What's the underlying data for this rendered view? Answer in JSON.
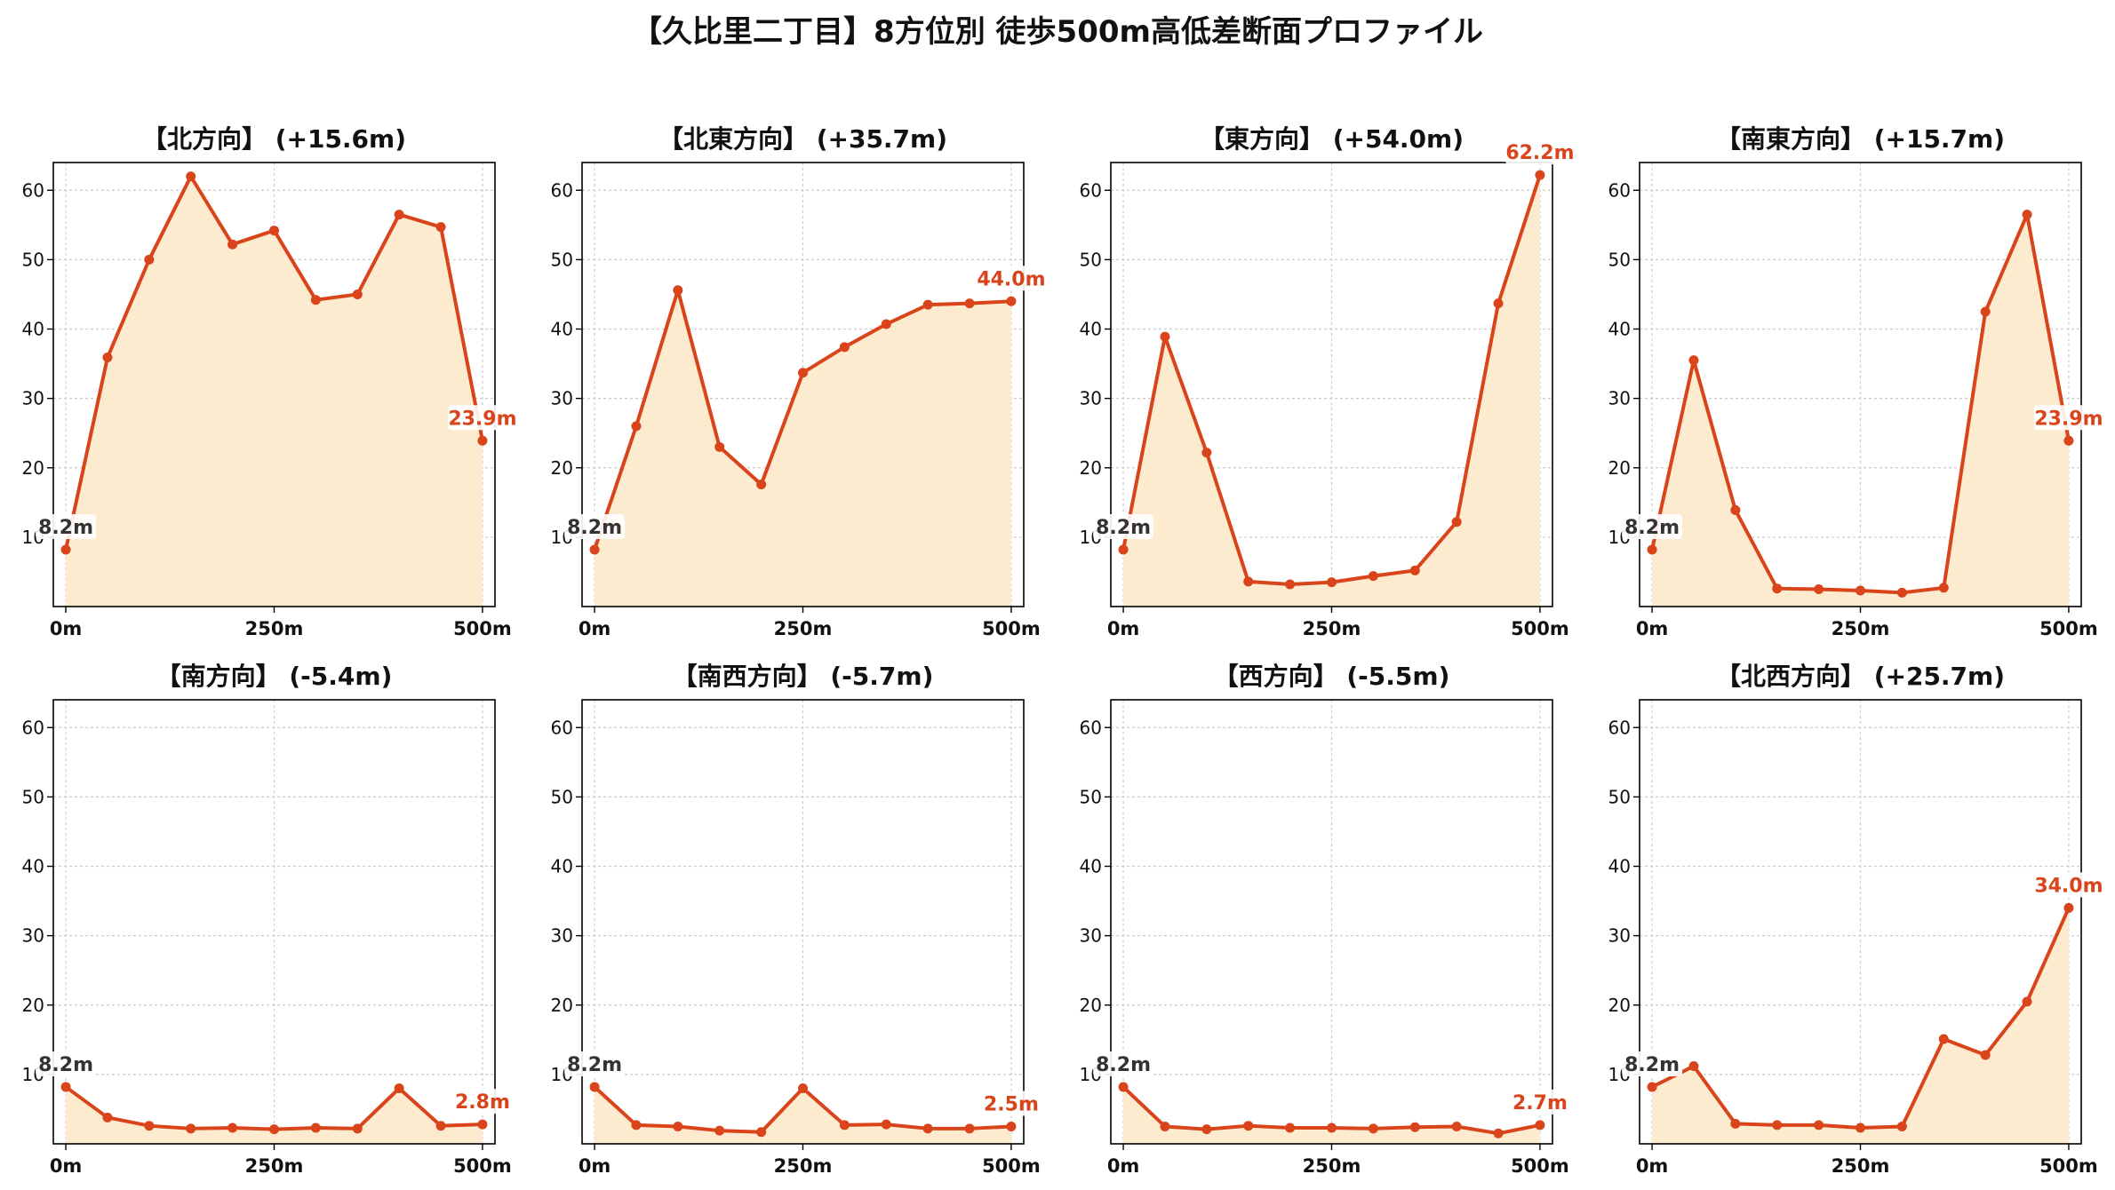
{
  "title": "【久比里二丁目】8方位別 徒歩500m高低差断面プロファイル",
  "colors": {
    "line": "#d9441a",
    "fill": "#fdebd0",
    "start_label": "#333333",
    "end_label": "#d9441a",
    "grid": "#cccccc"
  },
  "chart_data": [
    {
      "type": "area",
      "title": "【北方向】 (+15.6m)",
      "start_label": "8.2m",
      "end_label": "23.9m",
      "x": [
        0,
        50,
        100,
        150,
        200,
        250,
        300,
        350,
        400,
        450,
        500
      ],
      "values": [
        8.2,
        35.9,
        50.0,
        62.0,
        52.2,
        54.2,
        44.2,
        45.0,
        56.5,
        54.7,
        23.9
      ],
      "xticks": [
        "0m",
        "250m",
        "500m"
      ],
      "yticks": [
        "10",
        "20",
        "30",
        "40",
        "50",
        "60"
      ],
      "xlim": [
        -15,
        515
      ],
      "ylim": [
        0,
        64
      ],
      "grid": true
    },
    {
      "type": "area",
      "title": "【北東方向】 (+35.7m)",
      "start_label": "8.2m",
      "end_label": "44.0m",
      "x": [
        0,
        50,
        100,
        150,
        200,
        250,
        300,
        350,
        400,
        450,
        500
      ],
      "values": [
        8.2,
        26.0,
        45.6,
        23.0,
        17.6,
        33.7,
        37.4,
        40.7,
        43.5,
        43.7,
        44.0
      ],
      "xticks": [
        "0m",
        "250m",
        "500m"
      ],
      "yticks": [
        "10",
        "20",
        "30",
        "40",
        "50",
        "60"
      ],
      "xlim": [
        -15,
        515
      ],
      "ylim": [
        0,
        64
      ],
      "grid": true
    },
    {
      "type": "area",
      "title": "【東方向】 (+54.0m)",
      "start_label": "8.2m",
      "end_label": "62.2m",
      "x": [
        0,
        50,
        100,
        150,
        200,
        250,
        300,
        350,
        400,
        450,
        500
      ],
      "values": [
        8.2,
        38.9,
        22.2,
        3.6,
        3.2,
        3.5,
        4.4,
        5.2,
        12.2,
        43.7,
        62.2
      ],
      "xticks": [
        "0m",
        "250m",
        "500m"
      ],
      "yticks": [
        "10",
        "20",
        "30",
        "40",
        "50",
        "60"
      ],
      "xlim": [
        -15,
        515
      ],
      "ylim": [
        0,
        64
      ],
      "grid": true
    },
    {
      "type": "area",
      "title": "【南東方向】 (+15.7m)",
      "start_label": "8.2m",
      "end_label": "23.9m",
      "x": [
        0,
        50,
        100,
        150,
        200,
        250,
        300,
        350,
        400,
        450,
        500
      ],
      "values": [
        8.2,
        35.5,
        13.9,
        2.6,
        2.5,
        2.3,
        2.0,
        2.7,
        42.5,
        56.5,
        23.9
      ],
      "xticks": [
        "0m",
        "250m",
        "500m"
      ],
      "yticks": [
        "10",
        "20",
        "30",
        "40",
        "50",
        "60"
      ],
      "xlim": [
        -15,
        515
      ],
      "ylim": [
        0,
        64
      ],
      "grid": true
    },
    {
      "type": "area",
      "title": "【南方向】 (-5.4m)",
      "start_label": "8.2m",
      "end_label": "2.8m",
      "x": [
        0,
        50,
        100,
        150,
        200,
        250,
        300,
        350,
        400,
        450,
        500
      ],
      "values": [
        8.2,
        3.8,
        2.6,
        2.2,
        2.3,
        2.1,
        2.3,
        2.2,
        8.0,
        2.6,
        2.8
      ],
      "xticks": [
        "0m",
        "250m",
        "500m"
      ],
      "yticks": [
        "10",
        "20",
        "30",
        "40",
        "50",
        "60"
      ],
      "xlim": [
        -15,
        515
      ],
      "ylim": [
        0,
        64
      ],
      "grid": true
    },
    {
      "type": "area",
      "title": "【南西方向】 (-5.7m)",
      "start_label": "8.2m",
      "end_label": "2.5m",
      "x": [
        0,
        50,
        100,
        150,
        200,
        250,
        300,
        350,
        400,
        450,
        500
      ],
      "values": [
        8.2,
        2.7,
        2.5,
        1.9,
        1.7,
        8.0,
        2.7,
        2.8,
        2.2,
        2.2,
        2.5
      ],
      "xticks": [
        "0m",
        "250m",
        "500m"
      ],
      "yticks": [
        "10",
        "20",
        "30",
        "40",
        "50",
        "60"
      ],
      "xlim": [
        -15,
        515
      ],
      "ylim": [
        0,
        64
      ],
      "grid": true
    },
    {
      "type": "area",
      "title": "【西方向】 (-5.5m)",
      "start_label": "8.2m",
      "end_label": "2.7m",
      "x": [
        0,
        50,
        100,
        150,
        200,
        250,
        300,
        350,
        400,
        450,
        500
      ],
      "values": [
        8.2,
        2.5,
        2.1,
        2.6,
        2.3,
        2.3,
        2.2,
        2.4,
        2.5,
        1.5,
        2.7
      ],
      "xticks": [
        "0m",
        "250m",
        "500m"
      ],
      "yticks": [
        "10",
        "20",
        "30",
        "40",
        "50",
        "60"
      ],
      "xlim": [
        -15,
        515
      ],
      "ylim": [
        0,
        64
      ],
      "grid": true
    },
    {
      "type": "area",
      "title": "【北西方向】 (+25.7m)",
      "start_label": "8.2m",
      "end_label": "34.0m",
      "x": [
        0,
        50,
        100,
        150,
        200,
        250,
        300,
        350,
        400,
        450,
        500
      ],
      "values": [
        8.2,
        11.2,
        2.9,
        2.7,
        2.7,
        2.3,
        2.5,
        15.1,
        12.8,
        20.5,
        34.0
      ],
      "xticks": [
        "0m",
        "250m",
        "500m"
      ],
      "yticks": [
        "10",
        "20",
        "30",
        "40",
        "50",
        "60"
      ],
      "xlim": [
        -15,
        515
      ],
      "ylim": [
        0,
        64
      ],
      "grid": true
    }
  ]
}
